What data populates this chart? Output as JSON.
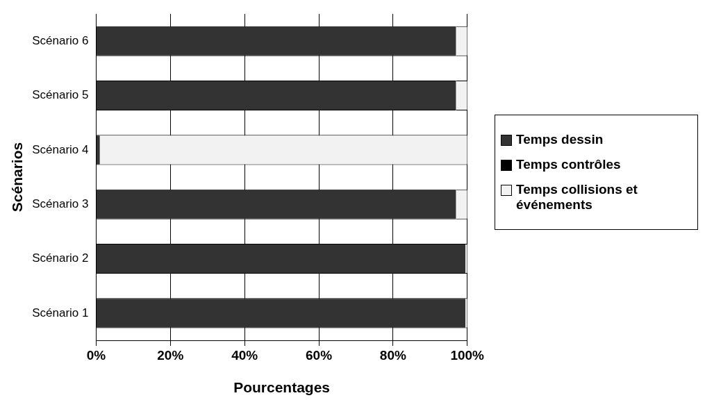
{
  "chart_data": {
    "type": "bar",
    "orientation": "horizontal",
    "stacked": true,
    "xlabel": "Pourcentages",
    "ylabel": "Scénarios",
    "categories": [
      "Scénario 6",
      "Scénario 5",
      "Scénario 4",
      "Scénario 3",
      "Scénario 2",
      "Scénario 1"
    ],
    "series": [
      {
        "name": "Temps dessin",
        "color": "#333333",
        "values": [
          97,
          97,
          1,
          97,
          99.5,
          99.5
        ]
      },
      {
        "name": "Temps contrôles",
        "color": "#000000",
        "values": [
          0,
          0,
          0,
          0,
          0,
          0
        ]
      },
      {
        "name": "Temps collisions et événements",
        "color": "#f2f2f2",
        "values": [
          3,
          3,
          99,
          3,
          0.5,
          0.5
        ]
      }
    ],
    "xlim": [
      0,
      100
    ],
    "xticks": [
      {
        "value": 0,
        "label": "0%"
      },
      {
        "value": 20,
        "label": "20%"
      },
      {
        "value": 40,
        "label": "40%"
      },
      {
        "value": 60,
        "label": "60%"
      },
      {
        "value": 80,
        "label": "80%"
      },
      {
        "value": 100,
        "label": "100%"
      }
    ],
    "grid": "x",
    "legend": "right"
  }
}
